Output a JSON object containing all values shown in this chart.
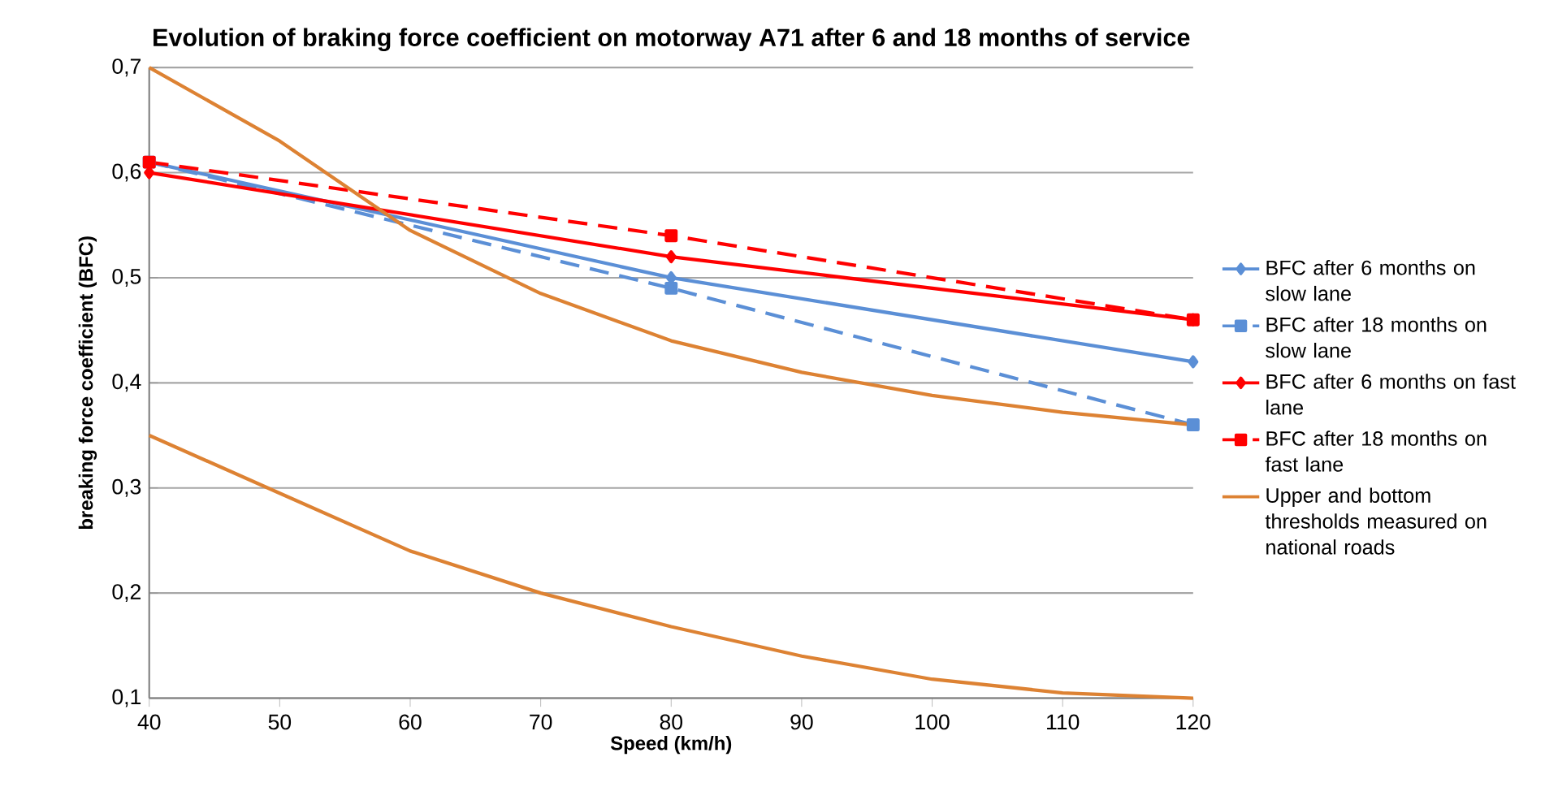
{
  "chart_data": {
    "type": "line",
    "title": "Evolution of braking force coefficient on motorway A71 after 6 and 18 months of service",
    "xlabel": "Speed (km/h)",
    "ylabel": "breaking force coefficient (BFC)",
    "xlim": [
      40,
      120
    ],
    "xticks": [
      40,
      50,
      60,
      70,
      80,
      90,
      100,
      110,
      120
    ],
    "ylim": [
      0.1,
      0.7
    ],
    "yticks": [
      {
        "value": 0.1,
        "label": "0,1"
      },
      {
        "value": 0.2,
        "label": "0,2"
      },
      {
        "value": 0.3,
        "label": "0,3"
      },
      {
        "value": 0.4,
        "label": "0,4"
      },
      {
        "value": 0.5,
        "label": "0,5"
      },
      {
        "value": 0.6,
        "label": "0,6"
      },
      {
        "value": 0.7,
        "label": "0,7"
      }
    ],
    "grid": "y",
    "legend": "right",
    "series": [
      {
        "name": "BFC after  6 months  on slow lane",
        "color": "#5b8fd6",
        "x": [
          40,
          80,
          120
        ],
        "values": [
          0.61,
          0.5,
          0.42
        ],
        "marker": "diamond",
        "line_style": "solid"
      },
      {
        "name": "BFC after  18 months on slow lane",
        "color": "#5b8fd6",
        "x": [
          40,
          80,
          120
        ],
        "values": [
          0.61,
          0.49,
          0.36
        ],
        "marker": "square",
        "line_style": "dashed"
      },
      {
        "name": "BFC after  6 months  on fast lane",
        "color": "#ff0000",
        "x": [
          40,
          80,
          120
        ],
        "values": [
          0.6,
          0.52,
          0.46
        ],
        "marker": "diamond",
        "line_style": "solid"
      },
      {
        "name": "BFC after  18 months on fast lane",
        "color": "#ff0000",
        "x": [
          40,
          80,
          120
        ],
        "values": [
          0.61,
          0.54,
          0.46
        ],
        "marker": "square",
        "line_style": "dashed"
      },
      {
        "name": "Upper and bottom thresholds measured on national roads",
        "color": "#dd8233",
        "x": [
          40,
          50,
          60,
          70,
          80,
          90,
          100,
          110,
          120
        ],
        "values": [
          0.7,
          0.63,
          0.545,
          0.485,
          0.44,
          0.41,
          0.388,
          0.372,
          0.36
        ],
        "marker": "none",
        "line_style": "solid"
      },
      {
        "color": "#dd8233",
        "x": [
          40,
          50,
          60,
          70,
          80,
          90,
          100,
          110,
          120
        ],
        "values": [
          0.35,
          0.295,
          0.24,
          0.2,
          0.168,
          0.14,
          0.118,
          0.105,
          0.1
        ],
        "marker": "none",
        "line_style": "solid"
      }
    ]
  }
}
